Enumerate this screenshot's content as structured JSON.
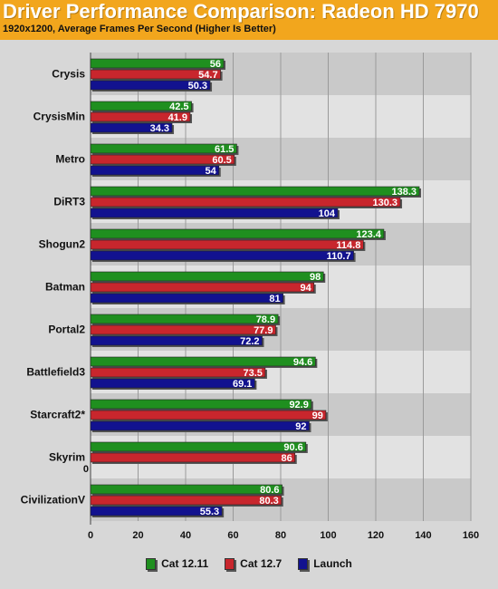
{
  "header": {
    "title": "Driver Performance Comparison: Radeon HD 7970",
    "subtitle": "1920x1200, Average Frames Per Second (Higher Is Better)"
  },
  "colors": {
    "header_bg": "#f2a61d",
    "plot_band_a": "#c9c9c9",
    "plot_band_b": "#e2e2e2",
    "cat_12_11": "#1f8f1f",
    "cat_12_7": "#c8262d",
    "launch": "#12128f"
  },
  "legend": [
    {
      "label": "Cat 12.11",
      "color": "#1f8f1f"
    },
    {
      "label": "Cat 12.7",
      "color": "#c8262d"
    },
    {
      "label": "Launch",
      "color": "#12128f"
    }
  ],
  "chart_data": {
    "type": "bar",
    "orientation": "horizontal",
    "title": "Driver Performance Comparison: Radeon HD 7970",
    "subtitle": "1920x1200, Average Frames Per Second (Higher Is Better)",
    "categories": [
      "Crysis",
      "CrysisMin",
      "Metro",
      "DiRT3",
      "Shogun2",
      "Batman",
      "Portal2",
      "Battlefield3",
      "Starcraft2*",
      "Skyrim",
      "CivilizationV"
    ],
    "series": [
      {
        "name": "Cat 12.11",
        "color": "#1f8f1f",
        "values": [
          56,
          42.5,
          61.5,
          138.3,
          123.4,
          98,
          78.9,
          94.6,
          92.9,
          90.6,
          80.6
        ]
      },
      {
        "name": "Cat 12.7",
        "color": "#c8262d",
        "values": [
          54.7,
          41.9,
          60.5,
          130.3,
          114.8,
          94,
          77.9,
          73.5,
          99,
          86,
          80.3
        ]
      },
      {
        "name": "Launch",
        "color": "#12128f",
        "values": [
          50.3,
          34.3,
          54,
          104,
          110.7,
          81,
          72.2,
          69.1,
          92,
          0,
          55.3
        ]
      }
    ],
    "xlim": [
      0,
      160
    ],
    "xticks": [
      0,
      20,
      40,
      60,
      80,
      100,
      120,
      140,
      160
    ],
    "grid": true,
    "legend_position": "bottom"
  }
}
